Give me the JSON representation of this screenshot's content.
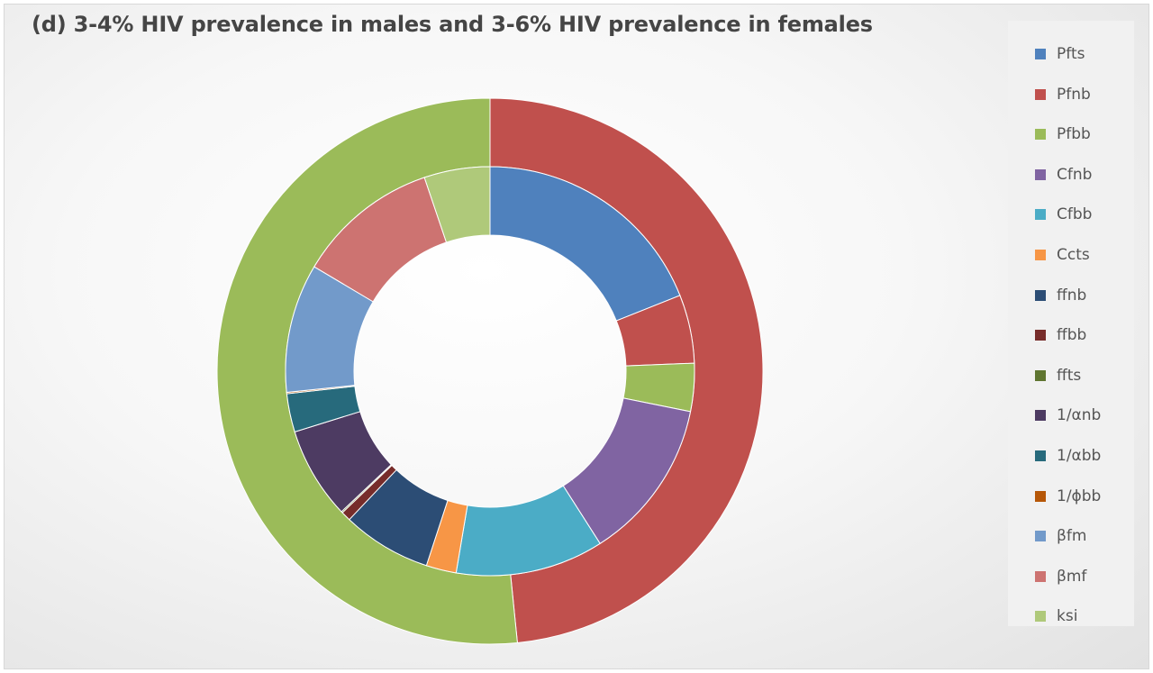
{
  "chart_data": {
    "type": "doughnut",
    "title": "(d) 3-4% HIV prevalence in males and 3-6% HIV prevalence in females",
    "legend_position": "right",
    "categories": [
      "Pfts",
      "Pfnb",
      "Pfbb",
      "Cfnb",
      "Cfbb",
      "Ccts",
      "ffnb",
      "ffbb",
      "ffts",
      "1/αnb",
      "1/αbb",
      "1/ϕbb",
      "βfm",
      "βmf",
      "ksi"
    ],
    "colors": [
      "#4F81BD",
      "#C0504D",
      "#9BBB59",
      "#8064A2",
      "#4BACC6",
      "#F79646",
      "#2C4D75",
      "#772C2A",
      "#5F7530",
      "#4D3B62",
      "#276A7C",
      "#B65708",
      "#729ACA",
      "#CD7371",
      "#AFC97A"
    ],
    "series": [
      {
        "ring": "outer",
        "values": [
          0,
          48.4,
          51.6,
          0,
          0,
          0,
          0,
          0,
          0,
          0,
          0,
          0,
          0,
          0,
          0
        ]
      },
      {
        "ring": "inner",
        "values": [
          17.5,
          5.0,
          3.5,
          11.8,
          10.8,
          2.2,
          6.5,
          0.7,
          0.1,
          6.7,
          2.8,
          0.1,
          9.4,
          10.4,
          4.8
        ]
      }
    ]
  }
}
